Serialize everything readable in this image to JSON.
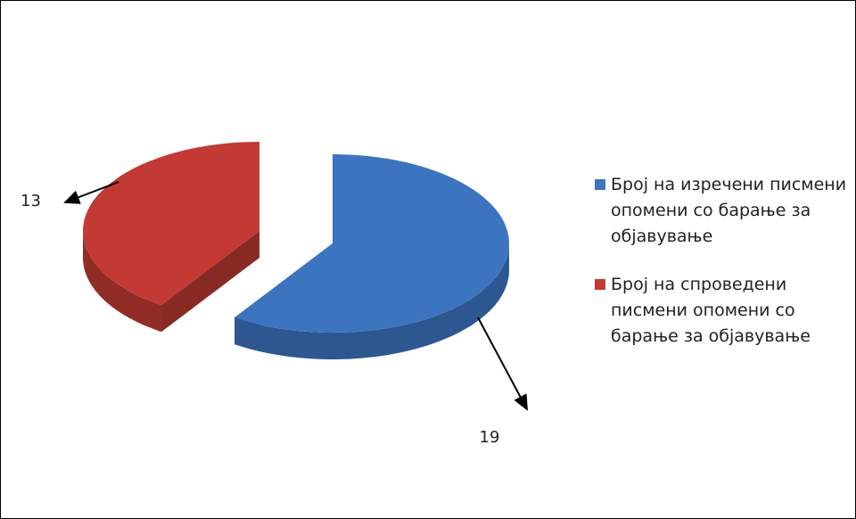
{
  "chart_data": {
    "type": "pie",
    "categories": [
      "Број на изречени писмени опомени со барање за објавување",
      "Број на спроведени писмени опомени со барање за објавување"
    ],
    "values": [
      19,
      13
    ],
    "colors": [
      "#3c74c0",
      "#c23a33"
    ],
    "legend": "right"
  }
}
